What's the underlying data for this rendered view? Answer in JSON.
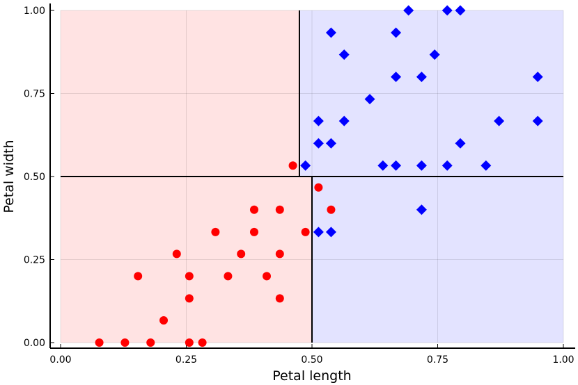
{
  "chart_data": {
    "type": "scatter",
    "title": "",
    "xlabel": "Petal length",
    "ylabel": "Petal width",
    "xlim": [
      0,
      1
    ],
    "ylim": [
      0,
      1
    ],
    "x_ticks": [
      0,
      0.25,
      0.5,
      0.75,
      1
    ],
    "y_ticks": [
      0,
      0.25,
      0.5,
      0.75,
      1
    ],
    "x_tick_labels": [
      "0.00",
      "0.25",
      "0.50",
      "0.75",
      "1.00"
    ],
    "y_tick_labels": [
      "0.00",
      "0.25",
      "0.50",
      "0.75",
      "1.00"
    ],
    "grid": true,
    "legend": "none",
    "regions": [
      {
        "x": [
          0,
          0.475
        ],
        "y": [
          0.5,
          1
        ],
        "color": "#ffe3e3"
      },
      {
        "x": [
          0.475,
          1
        ],
        "y": [
          0.5,
          1
        ],
        "color": "#e3e3ff"
      },
      {
        "x": [
          0,
          0.5
        ],
        "y": [
          0,
          0.5
        ],
        "color": "#ffe3e3"
      },
      {
        "x": [
          0.5,
          1
        ],
        "y": [
          0,
          0.5
        ],
        "color": "#e3e3ff"
      }
    ],
    "boundaries": [
      {
        "x": [
          0,
          1
        ],
        "y": [
          0.5,
          0.5
        ]
      },
      {
        "x": [
          0.475,
          0.475
        ],
        "y": [
          0.5,
          1
        ]
      },
      {
        "x": [
          0.5,
          0.5
        ],
        "y": [
          0,
          0.5
        ]
      }
    ],
    "series": [
      {
        "marker": "circle",
        "color": "#ff0000",
        "points": [
          [
            0.077,
            0.0
          ],
          [
            0.128,
            0.0
          ],
          [
            0.179,
            0.0
          ],
          [
            0.256,
            0.0
          ],
          [
            0.282,
            0.0
          ],
          [
            0.205,
            0.067
          ],
          [
            0.256,
            0.133
          ],
          [
            0.436,
            0.133
          ],
          [
            0.154,
            0.2
          ],
          [
            0.256,
            0.2
          ],
          [
            0.333,
            0.2
          ],
          [
            0.41,
            0.2
          ],
          [
            0.231,
            0.267
          ],
          [
            0.359,
            0.267
          ],
          [
            0.436,
            0.267
          ],
          [
            0.308,
            0.333
          ],
          [
            0.385,
            0.333
          ],
          [
            0.487,
            0.333
          ],
          [
            0.385,
            0.4
          ],
          [
            0.436,
            0.4
          ],
          [
            0.538,
            0.4
          ],
          [
            0.513,
            0.467
          ],
          [
            0.462,
            0.533
          ]
        ]
      },
      {
        "marker": "diamond",
        "color": "#0000ff",
        "points": [
          [
            0.513,
            0.333
          ],
          [
            0.538,
            0.333
          ],
          [
            0.718,
            0.4
          ],
          [
            0.487,
            0.533
          ],
          [
            0.641,
            0.533
          ],
          [
            0.667,
            0.533
          ],
          [
            0.718,
            0.533
          ],
          [
            0.769,
            0.533
          ],
          [
            0.846,
            0.533
          ],
          [
            0.513,
            0.6
          ],
          [
            0.538,
            0.6
          ],
          [
            0.795,
            0.6
          ],
          [
            0.513,
            0.667
          ],
          [
            0.564,
            0.667
          ],
          [
            0.872,
            0.667
          ],
          [
            0.949,
            0.667
          ],
          [
            0.615,
            0.733
          ],
          [
            0.667,
            0.8
          ],
          [
            0.718,
            0.8
          ],
          [
            0.949,
            0.8
          ],
          [
            0.564,
            0.867
          ],
          [
            0.744,
            0.867
          ],
          [
            0.538,
            0.933
          ],
          [
            0.667,
            0.933
          ],
          [
            0.692,
            1.0
          ],
          [
            0.769,
            1.0
          ],
          [
            0.795,
            1.0
          ]
        ]
      }
    ]
  }
}
